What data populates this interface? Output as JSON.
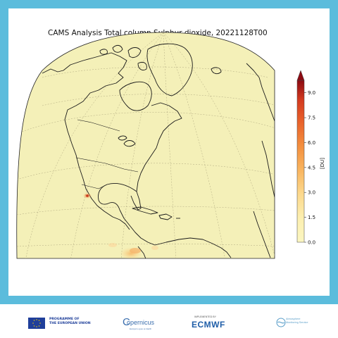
{
  "title": "CAMS Analysis Total column Sulphur dioxide, 20221128T00",
  "colorbar": {
    "unit": "[DU]",
    "ticks": [
      "0.0",
      "1.5",
      "3.0",
      "4.5",
      "6.0",
      "7.5",
      "9.0"
    ],
    "max": 9.75,
    "colors": [
      "#fbf6c1",
      "#fcefb0",
      "#fcd88c",
      "#f9b45e",
      "#f38d3d",
      "#e8602a",
      "#d33a1f",
      "#b2161a",
      "#8c0a12"
    ]
  },
  "map": {
    "projection": "orthographic",
    "ocean_color": "#f4f0b8",
    "coastline_color": "#1a1a1a",
    "graticule": "dashed",
    "hotspots": [
      {
        "region": "Mexico (volcano)",
        "value_du": 4.5
      },
      {
        "region": "Ecuador / Colombia",
        "value_du": 1.5
      }
    ]
  },
  "footer": {
    "eu_text": "PROGRAMME OF\nTHE EUROPEAN UNION",
    "copernicus": "opernicus",
    "copernicus_c": "C",
    "copernicus_sub": "Europe's eyes on Earth",
    "ecmwf_small": "IMPLEMENTED BY",
    "ecmwf": "ECMWF",
    "cams": "Atmosphere\nMonitoring Service"
  }
}
